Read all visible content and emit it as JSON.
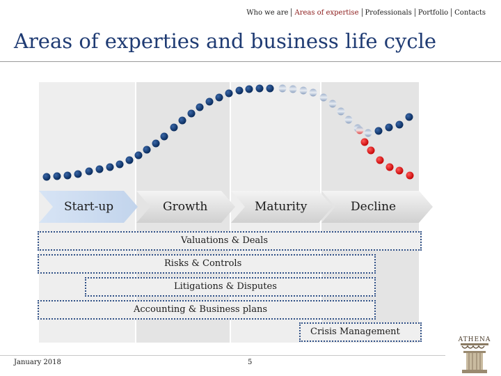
{
  "nav": {
    "items": [
      "Who we are",
      "Areas of expertise",
      "Professionals",
      "Portfolio",
      "Contacts"
    ],
    "active_index": 1
  },
  "page": {
    "title": "Areas of experties and business life cycle"
  },
  "lifecycle": {
    "stages": [
      "Start-up",
      "Growth",
      "Maturity",
      "Decline"
    ],
    "curve_legend_colors": {
      "main": "#0b2f66",
      "decline": "#e01010"
    }
  },
  "areas": [
    {
      "label": "Valuations & Deals"
    },
    {
      "label": "Risks & Controls"
    },
    {
      "label": "Litigations & Disputes"
    },
    {
      "label": "Accounting & Business plans"
    },
    {
      "label": "Crisis Management"
    }
  ],
  "footer": {
    "date": "January 2018",
    "page_number": "5"
  },
  "logo": {
    "text": "ATHENA"
  }
}
